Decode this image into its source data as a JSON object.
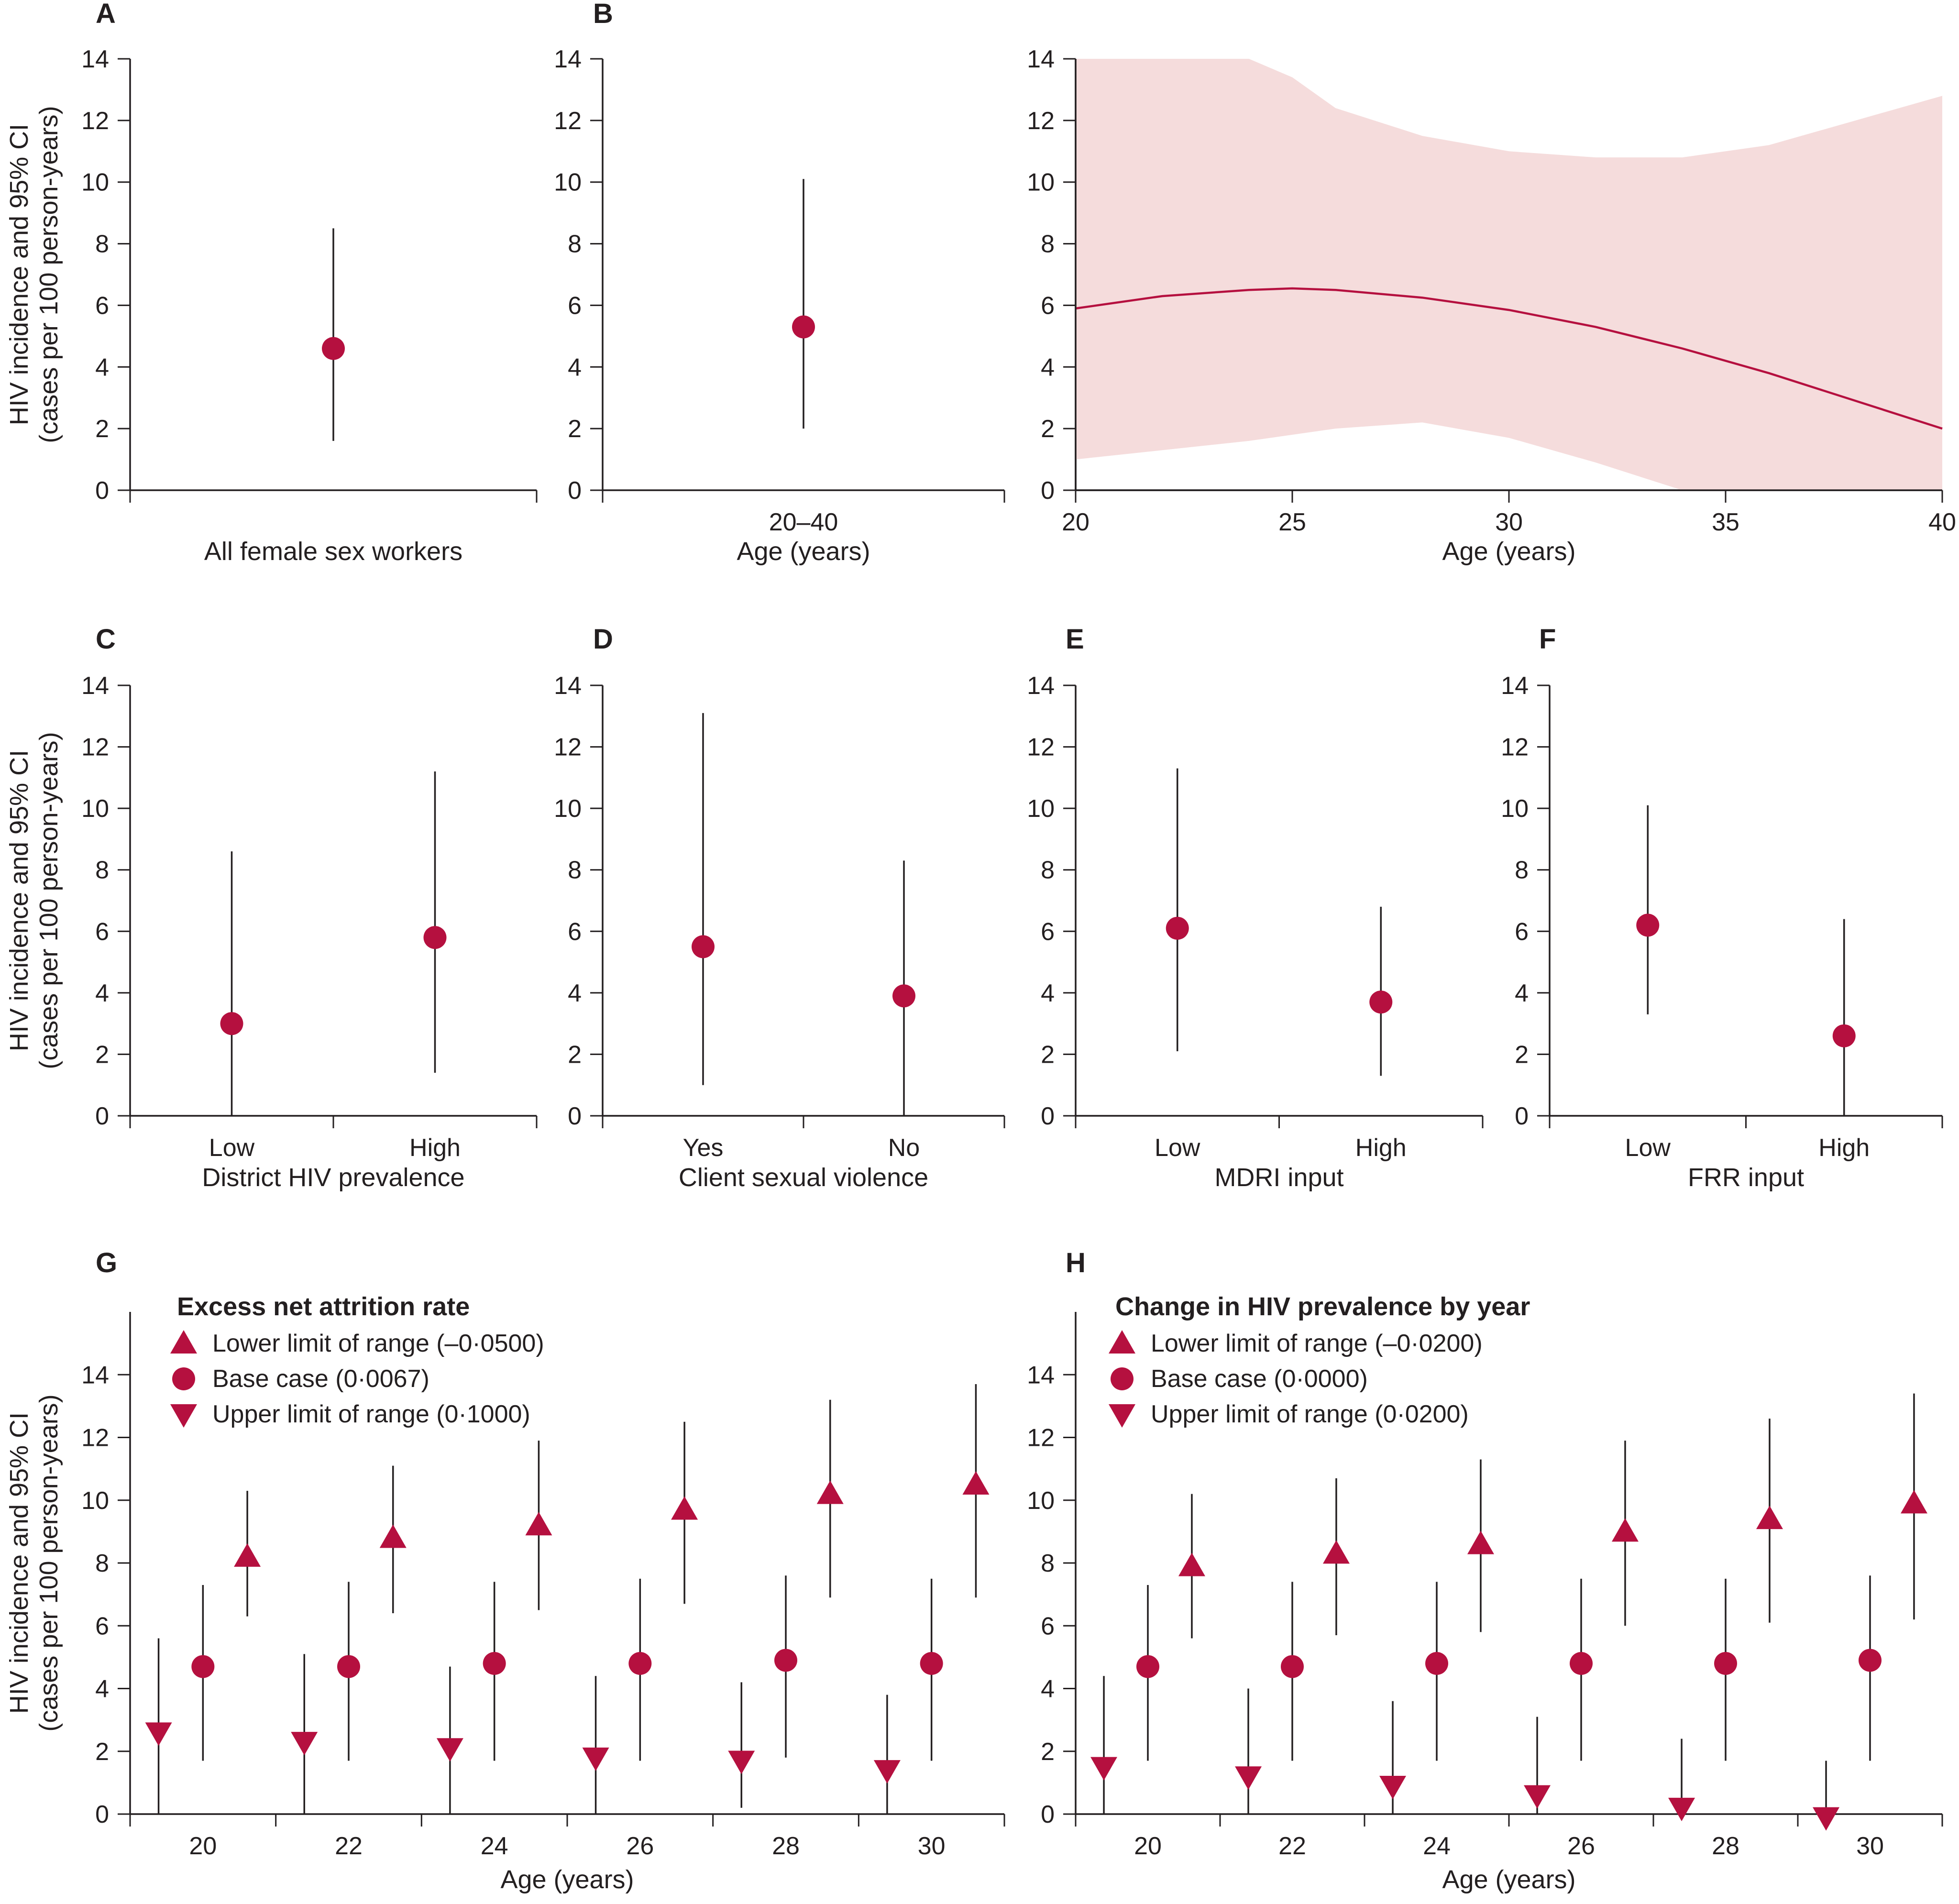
{
  "colors": {
    "marker": "#b5103f",
    "line": "#231f20",
    "band": "#f5dcdc"
  },
  "y_axis_label": [
    "HIV incidence and 95% CI",
    "(cases per 100 person-years)"
  ],
  "chart_data": [
    {
      "id": "A",
      "letter": "A",
      "type": "errorbar",
      "categories": [
        ""
      ],
      "xlabel": "All female sex workers",
      "ylabel": "HIV incidence and 95% CI (cases per 100 person-years)",
      "ylim": [
        0,
        14
      ],
      "yticks": [
        0,
        2,
        4,
        6,
        8,
        10,
        12,
        14
      ],
      "series": [
        {
          "marker": "circle",
          "points": [
            {
              "x": 0,
              "y": 4.6,
              "lo": 1.6,
              "hi": 8.5
            }
          ]
        }
      ]
    },
    {
      "id": "B1",
      "letter": "B",
      "type": "errorbar",
      "categories": [
        "20–40"
      ],
      "xlabel": "Age (years)",
      "ylim": [
        0,
        14
      ],
      "yticks": [
        0,
        2,
        4,
        6,
        8,
        10,
        12,
        14
      ],
      "series": [
        {
          "marker": "circle",
          "points": [
            {
              "x": 0,
              "y": 5.3,
              "lo": 2.0,
              "hi": 10.1
            }
          ]
        }
      ]
    },
    {
      "id": "B2",
      "letter": "",
      "type": "line",
      "xlabel": "Age (years)",
      "xlim": [
        20,
        40
      ],
      "xticks": [
        20,
        25,
        30,
        35,
        40
      ],
      "ylim": [
        0,
        14
      ],
      "yticks": [
        0,
        2,
        4,
        6,
        8,
        10,
        12,
        14
      ],
      "x": [
        20,
        22,
        24,
        25,
        26,
        28,
        30,
        32,
        34,
        36,
        38,
        40
      ],
      "y": [
        5.9,
        6.3,
        6.5,
        6.55,
        6.5,
        6.25,
        5.85,
        5.3,
        4.6,
        3.8,
        2.9,
        2.0
      ],
      "ci_lower": [
        1.0,
        1.3,
        1.6,
        1.8,
        2.0,
        2.2,
        1.7,
        0.9,
        0.0,
        0.0,
        0.0,
        0.0
      ],
      "ci_upper": [
        14,
        14,
        14,
        13.4,
        12.4,
        11.5,
        11.0,
        10.8,
        10.8,
        11.2,
        12.0,
        12.8
      ]
    },
    {
      "id": "C",
      "letter": "C",
      "type": "errorbar",
      "categories": [
        "Low",
        "High"
      ],
      "xlabel": "District HIV prevalence",
      "ylim": [
        0,
        14
      ],
      "yticks": [
        0,
        2,
        4,
        6,
        8,
        10,
        12,
        14
      ],
      "series": [
        {
          "marker": "circle",
          "points": [
            {
              "x": 0,
              "y": 3.0,
              "lo": 0.0,
              "hi": 8.6
            },
            {
              "x": 1,
              "y": 5.8,
              "lo": 1.4,
              "hi": 11.2
            }
          ]
        }
      ]
    },
    {
      "id": "D",
      "letter": "D",
      "type": "errorbar",
      "categories": [
        "Yes",
        "No"
      ],
      "xlabel": "Client sexual violence",
      "ylim": [
        0,
        14
      ],
      "yticks": [
        0,
        2,
        4,
        6,
        8,
        10,
        12,
        14
      ],
      "series": [
        {
          "marker": "circle",
          "points": [
            {
              "x": 0,
              "y": 5.5,
              "lo": 1.0,
              "hi": 13.1
            },
            {
              "x": 1,
              "y": 3.9,
              "lo": 0.0,
              "hi": 8.3
            }
          ]
        }
      ]
    },
    {
      "id": "E",
      "letter": "E",
      "type": "errorbar",
      "categories": [
        "Low",
        "High"
      ],
      "xlabel": "MDRI input",
      "ylim": [
        0,
        14
      ],
      "yticks": [
        0,
        2,
        4,
        6,
        8,
        10,
        12,
        14
      ],
      "series": [
        {
          "marker": "circle",
          "points": [
            {
              "x": 0,
              "y": 6.1,
              "lo": 2.1,
              "hi": 11.3
            },
            {
              "x": 1,
              "y": 3.7,
              "lo": 1.3,
              "hi": 6.8
            }
          ]
        }
      ]
    },
    {
      "id": "F",
      "letter": "F",
      "type": "errorbar",
      "categories": [
        "Low",
        "High"
      ],
      "xlabel": "FRR input",
      "ylim": [
        0,
        14
      ],
      "yticks": [
        0,
        2,
        4,
        6,
        8,
        10,
        12,
        14
      ],
      "series": [
        {
          "marker": "circle",
          "points": [
            {
              "x": 0,
              "y": 6.2,
              "lo": 3.3,
              "hi": 10.1
            },
            {
              "x": 1,
              "y": 2.6,
              "lo": 0.0,
              "hi": 6.4
            }
          ]
        }
      ]
    },
    {
      "id": "G",
      "letter": "G",
      "type": "errorbar",
      "categories": [
        "20",
        "22",
        "24",
        "26",
        "28",
        "30"
      ],
      "xlabel": "Age (years)",
      "ylim": [
        0,
        16
      ],
      "yticks": [
        0,
        2,
        4,
        6,
        8,
        10,
        12,
        14
      ],
      "legend": {
        "title": "Excess net attrition rate",
        "items": [
          {
            "marker": "triangle-up",
            "label": "Lower limit of range (–0·0500)"
          },
          {
            "marker": "circle",
            "label": "Base case (0·0067)"
          },
          {
            "marker": "triangle-down",
            "label": "Upper limit of range (0·1000)"
          }
        ]
      },
      "series": [
        {
          "name": "Upper limit of range (0·1000)",
          "marker": "triangle-down",
          "offset": -0.35,
          "points": [
            {
              "x": 0,
              "y": 2.6,
              "lo": 0.0,
              "hi": 5.6
            },
            {
              "x": 1,
              "y": 2.3,
              "lo": 0.0,
              "hi": 5.1
            },
            {
              "x": 2,
              "y": 2.1,
              "lo": 0.0,
              "hi": 4.7
            },
            {
              "x": 3,
              "y": 1.8,
              "lo": 0.0,
              "hi": 4.4
            },
            {
              "x": 4,
              "y": 1.7,
              "lo": 0.2,
              "hi": 4.2
            },
            {
              "x": 5,
              "y": 1.4,
              "lo": 0.0,
              "hi": 3.8
            }
          ]
        },
        {
          "name": "Base case (0·0067)",
          "marker": "circle",
          "offset": 0.0,
          "points": [
            {
              "x": 0,
              "y": 4.7,
              "lo": 1.7,
              "hi": 7.3
            },
            {
              "x": 1,
              "y": 4.7,
              "lo": 1.7,
              "hi": 7.4
            },
            {
              "x": 2,
              "y": 4.8,
              "lo": 1.7,
              "hi": 7.4
            },
            {
              "x": 3,
              "y": 4.8,
              "lo": 1.7,
              "hi": 7.5
            },
            {
              "x": 4,
              "y": 4.9,
              "lo": 1.8,
              "hi": 7.6
            },
            {
              "x": 5,
              "y": 4.8,
              "lo": 1.7,
              "hi": 7.5
            }
          ]
        },
        {
          "name": "Lower limit of range (–0·0500)",
          "marker": "triangle-up",
          "offset": 0.35,
          "points": [
            {
              "x": 0,
              "y": 8.2,
              "lo": 6.3,
              "hi": 10.3
            },
            {
              "x": 1,
              "y": 8.8,
              "lo": 6.4,
              "hi": 11.1
            },
            {
              "x": 2,
              "y": 9.2,
              "lo": 6.5,
              "hi": 11.9
            },
            {
              "x": 3,
              "y": 9.7,
              "lo": 6.7,
              "hi": 12.5
            },
            {
              "x": 4,
              "y": 10.2,
              "lo": 6.9,
              "hi": 13.2
            },
            {
              "x": 5,
              "y": 10.5,
              "lo": 6.9,
              "hi": 13.7
            }
          ]
        }
      ]
    },
    {
      "id": "H",
      "letter": "H",
      "type": "errorbar",
      "categories": [
        "20",
        "22",
        "24",
        "26",
        "28",
        "30"
      ],
      "xlabel": "Age (years)",
      "ylim": [
        0,
        16
      ],
      "yticks": [
        0,
        2,
        4,
        6,
        8,
        10,
        12,
        14
      ],
      "legend": {
        "title": "Change in HIV prevalence by year",
        "items": [
          {
            "marker": "triangle-up",
            "label": "Lower limit of range (–0·0200)"
          },
          {
            "marker": "circle",
            "label": "Base case (0·0000)"
          },
          {
            "marker": "triangle-down",
            "label": "Upper limit of range (0·0200)"
          }
        ]
      },
      "series": [
        {
          "name": "Upper limit of range (0·0200)",
          "marker": "triangle-down",
          "offset": -0.35,
          "points": [
            {
              "x": 0,
              "y": 1.5,
              "lo": 0.0,
              "hi": 4.4
            },
            {
              "x": 1,
              "y": 1.2,
              "lo": 0.0,
              "hi": 4.0
            },
            {
              "x": 2,
              "y": 0.9,
              "lo": 0.0,
              "hi": 3.6
            },
            {
              "x": 3,
              "y": 0.6,
              "lo": 0.0,
              "hi": 3.1
            },
            {
              "x": 4,
              "y": 0.2,
              "lo": 0.0,
              "hi": 2.4
            },
            {
              "x": 5,
              "y": -0.1,
              "lo": 0.0,
              "hi": 1.7
            }
          ]
        },
        {
          "name": "Base case (0·0000)",
          "marker": "circle",
          "offset": 0.0,
          "points": [
            {
              "x": 0,
              "y": 4.7,
              "lo": 1.7,
              "hi": 7.3
            },
            {
              "x": 1,
              "y": 4.7,
              "lo": 1.7,
              "hi": 7.4
            },
            {
              "x": 2,
              "y": 4.8,
              "lo": 1.7,
              "hi": 7.4
            },
            {
              "x": 3,
              "y": 4.8,
              "lo": 1.7,
              "hi": 7.5
            },
            {
              "x": 4,
              "y": 4.8,
              "lo": 1.7,
              "hi": 7.5
            },
            {
              "x": 5,
              "y": 4.9,
              "lo": 1.7,
              "hi": 7.6
            }
          ]
        },
        {
          "name": "Lower limit of range (–0·0200)",
          "marker": "triangle-up",
          "offset": 0.35,
          "points": [
            {
              "x": 0,
              "y": 7.9,
              "lo": 5.6,
              "hi": 10.2
            },
            {
              "x": 1,
              "y": 8.3,
              "lo": 5.7,
              "hi": 10.7
            },
            {
              "x": 2,
              "y": 8.6,
              "lo": 5.8,
              "hi": 11.3
            },
            {
              "x": 3,
              "y": 9.0,
              "lo": 6.0,
              "hi": 11.9
            },
            {
              "x": 4,
              "y": 9.4,
              "lo": 6.1,
              "hi": 12.6
            },
            {
              "x": 5,
              "y": 9.9,
              "lo": 6.2,
              "hi": 13.4
            }
          ]
        }
      ]
    }
  ]
}
